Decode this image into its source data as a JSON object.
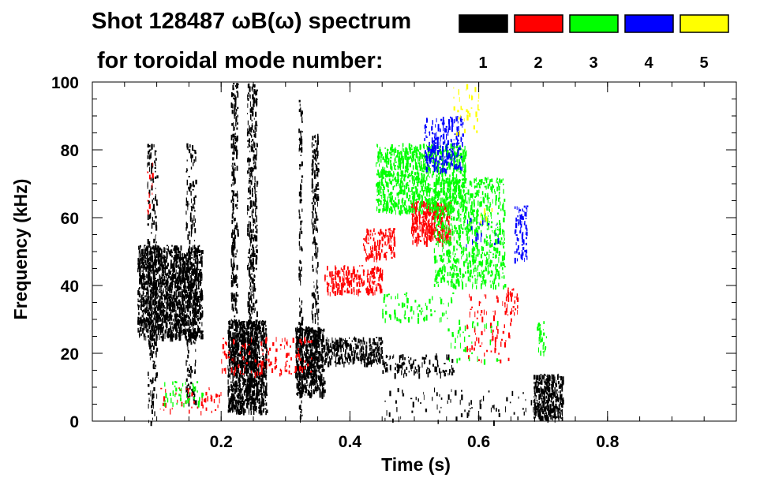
{
  "chart_data": {
    "type": "scatter",
    "title_line1": "Shot 128487 ωB(ω) spectrum",
    "title_line2": "for toroidal mode number:",
    "xlabel": "Time (s)",
    "ylabel": "Frequency (kHz)",
    "xlim": [
      0,
      1.0
    ],
    "ylim": [
      0,
      100
    ],
    "x_ticks": [
      0.2,
      0.4,
      0.6,
      0.8
    ],
    "x_tick_labels": [
      "0.2",
      "0.4",
      "0.6",
      "0.8"
    ],
    "y_ticks": [
      0,
      20,
      40,
      60,
      80,
      100
    ],
    "y_tick_labels": [
      "0",
      "20",
      "40",
      "60",
      "80",
      "100"
    ],
    "legend": {
      "placement": "top-right",
      "entries": [
        {
          "label": "1",
          "color": "#000000"
        },
        {
          "label": "2",
          "color": "#ff0000"
        },
        {
          "label": "3",
          "color": "#00ff00"
        },
        {
          "label": "4",
          "color": "#0000ff"
        },
        {
          "label": "5",
          "color": "#ffff00"
        }
      ]
    },
    "series": [
      {
        "name": "n=1",
        "color": "#000000",
        "regions": [
          {
            "t": [
              0.07,
              0.17
            ],
            "f": [
              25,
              52
            ],
            "density": 0.85
          },
          {
            "t": [
              0.085,
              0.1
            ],
            "f": [
              0,
              82
            ],
            "density": 0.25
          },
          {
            "t": [
              0.145,
              0.16
            ],
            "f": [
              5,
              82
            ],
            "density": 0.25
          },
          {
            "t": [
              0.21,
              0.27
            ],
            "f": [
              3,
              30
            ],
            "density": 0.9
          },
          {
            "t": [
              0.215,
              0.225
            ],
            "f": [
              15,
              100
            ],
            "density": 0.45
          },
          {
            "t": [
              0.24,
              0.255
            ],
            "f": [
              10,
              100
            ],
            "density": 0.45
          },
          {
            "t": [
              0.315,
              0.36
            ],
            "f": [
              8,
              28
            ],
            "density": 0.95
          },
          {
            "t": [
              0.32,
              0.325
            ],
            "f": [
              0,
              95
            ],
            "density": 0.35
          },
          {
            "t": [
              0.34,
              0.35
            ],
            "f": [
              10,
              85
            ],
            "density": 0.4
          },
          {
            "t": [
              0.36,
              0.45
            ],
            "f": [
              17,
              25
            ],
            "density": 0.6
          },
          {
            "t": [
              0.45,
              0.56
            ],
            "f": [
              14,
              20
            ],
            "density": 0.25
          },
          {
            "t": [
              0.685,
              0.73
            ],
            "f": [
              1,
              14
            ],
            "density": 0.8
          },
          {
            "t": [
              0.45,
              0.72
            ],
            "f": [
              0,
              10
            ],
            "density": 0.05
          }
        ]
      },
      {
        "name": "n=2",
        "color": "#ff0000",
        "regions": [
          {
            "t": [
              0.36,
              0.45
            ],
            "f": [
              38,
              46
            ],
            "density": 0.45
          },
          {
            "t": [
              0.42,
              0.47
            ],
            "f": [
              48,
              57
            ],
            "density": 0.4
          },
          {
            "t": [
              0.495,
              0.555
            ],
            "f": [
              53,
              65
            ],
            "density": 0.7
          },
          {
            "t": [
              0.2,
              0.34
            ],
            "f": [
              14,
              25
            ],
            "density": 0.12
          },
          {
            "t": [
              0.1,
              0.2
            ],
            "f": [
              3,
              10
            ],
            "density": 0.1
          },
          {
            "t": [
              0.58,
              0.65
            ],
            "f": [
              18,
              38
            ],
            "density": 0.08
          },
          {
            "t": [
              0.64,
              0.66
            ],
            "f": [
              32,
              40
            ],
            "density": 0.25
          },
          {
            "t": [
              0.085,
              0.095
            ],
            "f": [
              62,
              78
            ],
            "density": 0.12
          }
        ]
      },
      {
        "name": "n=3",
        "color": "#00ff00",
        "regions": [
          {
            "t": [
              0.44,
              0.58
            ],
            "f": [
              62,
              82
            ],
            "density": 0.5
          },
          {
            "t": [
              0.53,
              0.64
            ],
            "f": [
              40,
              72
            ],
            "density": 0.3
          },
          {
            "t": [
              0.45,
              0.56
            ],
            "f": [
              30,
              38
            ],
            "density": 0.12
          },
          {
            "t": [
              0.11,
              0.17
            ],
            "f": [
              5,
              12
            ],
            "density": 0.15
          },
          {
            "t": [
              0.69,
              0.705
            ],
            "f": [
              20,
              30
            ],
            "density": 0.3
          },
          {
            "t": [
              0.55,
              0.63
            ],
            "f": [
              18,
              30
            ],
            "density": 0.06
          }
        ]
      },
      {
        "name": "n=4",
        "color": "#0000ff",
        "regions": [
          {
            "t": [
              0.515,
              0.575
            ],
            "f": [
              74,
              90
            ],
            "density": 0.35
          },
          {
            "t": [
              0.655,
              0.675
            ],
            "f": [
              48,
              64
            ],
            "density": 0.35
          },
          {
            "t": [
              0.58,
              0.63
            ],
            "f": [
              52,
              60
            ],
            "density": 0.08
          }
        ]
      },
      {
        "name": "n=5",
        "color": "#ffff00",
        "regions": [
          {
            "t": [
              0.56,
              0.6
            ],
            "f": [
              85,
              100
            ],
            "density": 0.08
          },
          {
            "t": [
              0.6,
              0.62
            ],
            "f": [
              58,
              64
            ],
            "density": 0.1
          }
        ]
      }
    ]
  }
}
